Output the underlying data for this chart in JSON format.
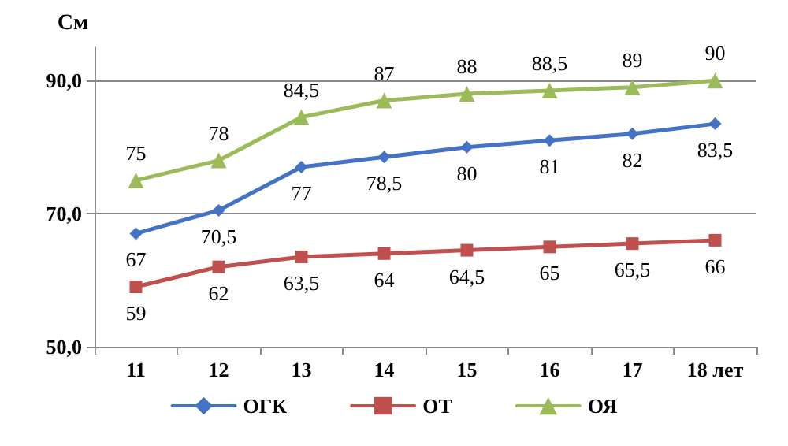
{
  "chart_data": {
    "type": "line",
    "ylabel": "См",
    "categories": [
      "11",
      "12",
      "13",
      "14",
      "15",
      "16",
      "17",
      "18 лет"
    ],
    "ylim": [
      50,
      95
    ],
    "yticks": [
      {
        "value": 50,
        "label": "50,0"
      },
      {
        "value": 70,
        "label": "70,0"
      },
      {
        "value": 90,
        "label": "90,0"
      }
    ],
    "grid": "y",
    "legend": "bottom",
    "series": [
      {
        "name": "ОГК",
        "color": "#4472c4",
        "marker": "diamond",
        "values": [
          67,
          70.5,
          77,
          78.5,
          80,
          81,
          82,
          83.5
        ],
        "value_labels": [
          "67",
          "70,5",
          "77",
          "78,5",
          "80",
          "81",
          "82",
          "83,5"
        ]
      },
      {
        "name": "ОТ",
        "color": "#c0504d",
        "marker": "square",
        "values": [
          59,
          62,
          63.5,
          64,
          64.5,
          65,
          65.5,
          66
        ],
        "value_labels": [
          "59",
          "62",
          "63,5",
          "64",
          "64,5",
          "65",
          "65,5",
          "66"
        ]
      },
      {
        "name": "ОЯ",
        "color": "#9bbb59",
        "marker": "triangle",
        "values": [
          75,
          78,
          84.5,
          87,
          88,
          88.5,
          89,
          90
        ],
        "value_labels": [
          "75",
          "78",
          "84,5",
          "87",
          "88",
          "88,5",
          "89",
          "90"
        ]
      }
    ]
  }
}
